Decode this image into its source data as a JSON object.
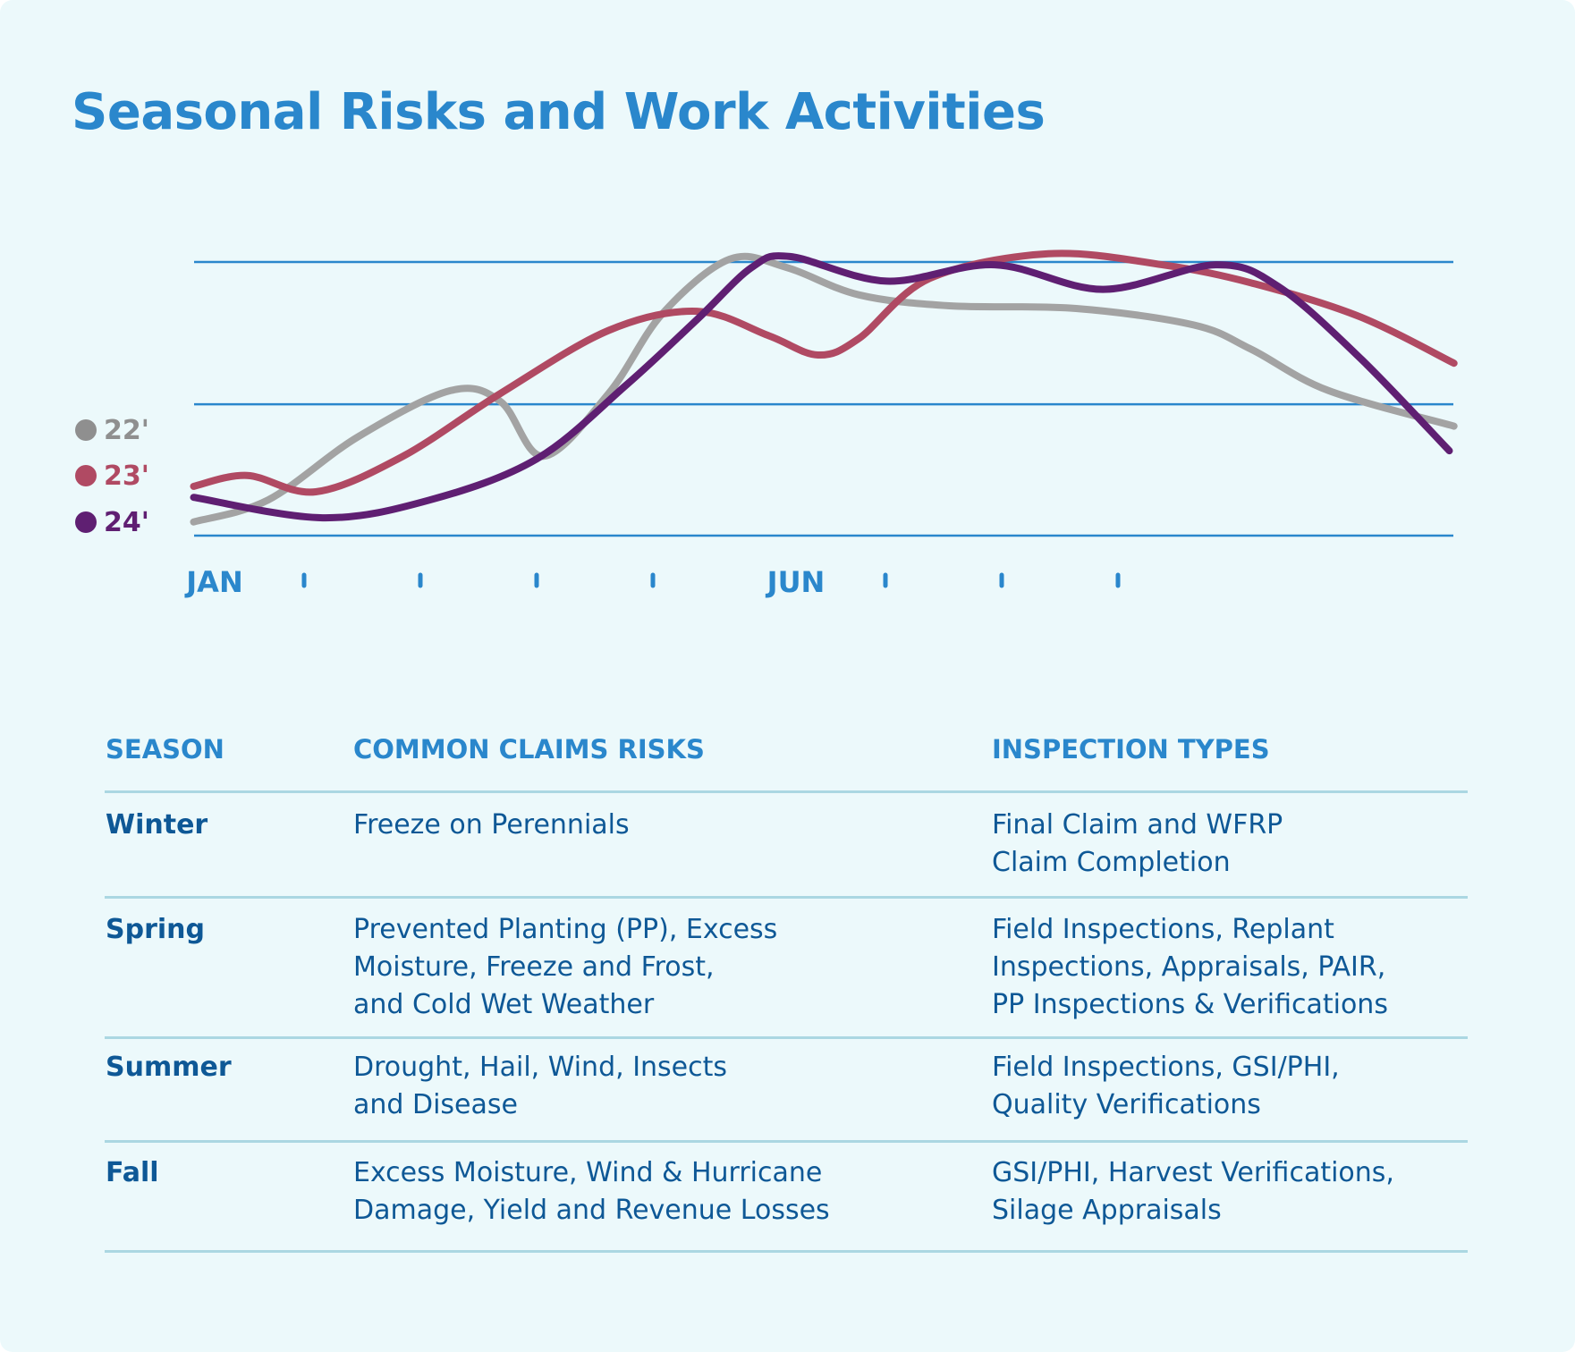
{
  "title": "Seasonal Risks and Work Activities",
  "colors": {
    "background": "#ecf9fb",
    "title": "#2a87cc",
    "gridline": "#2a87cc",
    "header_text": "#2a87cc",
    "body_text": "#0e5896",
    "divider": "#abd7e2"
  },
  "chart_data": {
    "type": "line",
    "title": "",
    "xlabel": "",
    "ylabel": "",
    "x_unit": "month (1 = JAN, 12 = DEC)",
    "xlim": [
      1,
      12
    ],
    "ylim": [
      0,
      100
    ],
    "y_gridlines": [
      0,
      48,
      100
    ],
    "grid": true,
    "y_tick_labels": false,
    "x_tick_labels": [
      {
        "month": 1,
        "label": "JAN"
      },
      {
        "month": 2,
        "label": ""
      },
      {
        "month": 3,
        "label": ""
      },
      {
        "month": 4,
        "label": ""
      },
      {
        "month": 5,
        "label": ""
      },
      {
        "month": 6,
        "label": "JUN"
      },
      {
        "month": 7,
        "label": ""
      },
      {
        "month": 8,
        "label": ""
      },
      {
        "month": 9,
        "label": ""
      }
    ],
    "legend_position": "left",
    "series": [
      {
        "name": "22'",
        "color": "#a3a3a3",
        "legend_color": "#8f8f8f",
        "x": [
          1.05,
          1.69,
          2.46,
          3.26,
          3.69,
          4.06,
          4.62,
          5.08,
          5.66,
          6.15,
          6.77,
          7.55,
          8.64,
          9.65,
          10.15,
          10.81,
          11.89
        ],
        "y": [
          5,
          13,
          36,
          53,
          49,
          29,
          52,
          81,
          101,
          98,
          88,
          84,
          83,
          77,
          68,
          53,
          40
        ]
      },
      {
        "name": "23'",
        "color": "#b04a63",
        "legend_color": "#b04a63",
        "x": [
          1.05,
          1.51,
          2.1,
          2.85,
          3.69,
          4.62,
          5.38,
          6.0,
          6.42,
          6.77,
          7.38,
          8.4,
          9.38,
          10.18,
          11.08,
          11.89
        ],
        "y": [
          18,
          22,
          16,
          29,
          52,
          75,
          82,
          73,
          66,
          72,
          94,
          103,
          99,
          92,
          80,
          63
        ]
      },
      {
        "name": "24'",
        "color": "#5f1f72",
        "legend_color": "#5f1f72",
        "x": [
          1.05,
          2.16,
          3.08,
          4.0,
          4.77,
          5.38,
          5.85,
          6.18,
          7.01,
          7.94,
          8.87,
          9.84,
          10.38,
          11.08,
          11.85
        ],
        "y": [
          14,
          6.5,
          13,
          28,
          55,
          79,
          98,
          102,
          93,
          99,
          90,
          99,
          91,
          65,
          31
        ]
      }
    ]
  },
  "table": {
    "headers": [
      "SEASON",
      "COMMON CLAIMS RISKS",
      "INSPECTION TYPES"
    ],
    "rows": [
      {
        "season": "Winter",
        "risks": [
          "Freeze on Perennials"
        ],
        "inspections": [
          "Final Claim and WFRP",
          "Claim Completion"
        ]
      },
      {
        "season": "Spring",
        "risks": [
          "Prevented Planting (PP), Excess",
          "Moisture, Freeze and Frost,",
          "and Cold Wet Weather"
        ],
        "inspections": [
          "Field Inspections, Replant",
          "Inspections, Appraisals, PAIR,",
          "PP Inspections & Verifications"
        ]
      },
      {
        "season": "Summer",
        "risks": [
          "Drought, Hail, Wind, Insects",
          "and Disease"
        ],
        "inspections": [
          "Field Inspections, GSI/PHI,",
          "Quality Verifications"
        ]
      },
      {
        "season": "Fall",
        "risks": [
          "Excess Moisture, Wind & Hurricane",
          "Damage, Yield and Revenue Losses"
        ],
        "inspections": [
          "GSI/PHI, Harvest Verifications,",
          "Silage Appraisals"
        ]
      }
    ]
  }
}
